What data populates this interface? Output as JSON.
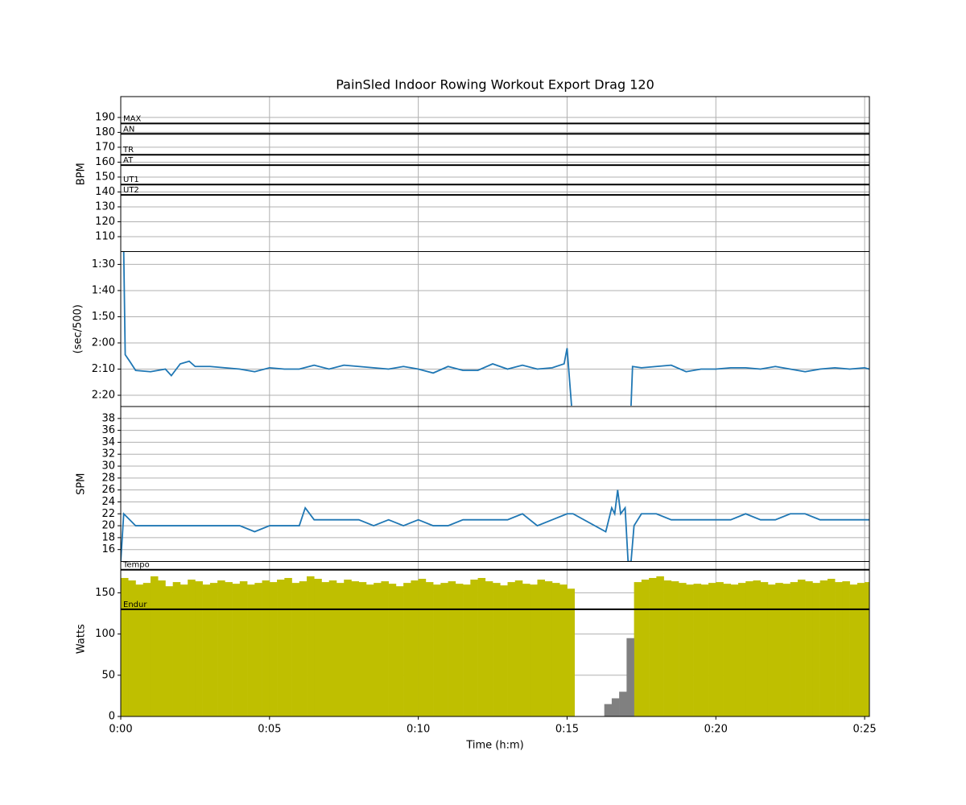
{
  "chart_data": [
    {
      "type": "line",
      "title": "PainSled Indoor Rowing Workout Export Drag 120",
      "ylabel": "BPM",
      "xlim": [
        0,
        25.16
      ],
      "xticks": [
        0,
        5,
        10,
        15,
        20,
        25
      ],
      "ylim": [
        100,
        204
      ],
      "yticks": [
        110,
        120,
        130,
        140,
        150,
        160,
        170,
        180,
        190
      ],
      "grid": true,
      "hlines": [
        {
          "value": 186,
          "label": "MAX"
        },
        {
          "value": 179,
          "label": "AN"
        },
        {
          "value": 165,
          "label": "TR"
        },
        {
          "value": 158,
          "label": "AT"
        },
        {
          "value": 145,
          "label": "UT1"
        },
        {
          "value": 138,
          "label": "UT2"
        }
      ],
      "series": []
    },
    {
      "type": "line",
      "ylabel": "(sec/500)",
      "xlim": [
        0,
        25.16
      ],
      "xticks": [
        0,
        5,
        10,
        15,
        20,
        25
      ],
      "ylim": [
        144.3,
        85.1
      ],
      "yticks": [
        {
          "value": 90,
          "label": "1:30"
        },
        {
          "value": 100,
          "label": "1:40"
        },
        {
          "value": 110,
          "label": "1:50"
        },
        {
          "value": 120,
          "label": "2:00"
        },
        {
          "value": 130,
          "label": "2:10"
        },
        {
          "value": 140,
          "label": "2:20"
        }
      ],
      "grid": true,
      "series": [
        {
          "color": "#1f77b4",
          "x": [
            0.1,
            0.15,
            0.3,
            0.5,
            1,
            1.5,
            1.7,
            2,
            2.3,
            2.5,
            3,
            3.5,
            4,
            4.5,
            5,
            5.5,
            6,
            6.5,
            7,
            7.5,
            8,
            8.5,
            9,
            9.5,
            10,
            10.5,
            11,
            11.5,
            12,
            12.5,
            13,
            13.5,
            14,
            14.5,
            14.9,
            15,
            15.15,
            16,
            17.15,
            17.2,
            17.5,
            18,
            18.5,
            19,
            19.5,
            20,
            20.5,
            21,
            21.5,
            22,
            22.5,
            23,
            23.5,
            24,
            24.5,
            25,
            25.16
          ],
          "values": [
            85,
            124.5,
            127,
            130.5,
            131,
            130,
            132.5,
            128,
            127,
            129,
            129,
            129.5,
            130,
            131,
            129.5,
            130,
            130,
            128.5,
            130,
            128.5,
            129,
            129.5,
            130,
            129,
            130,
            131.5,
            129,
            130.5,
            130.5,
            128,
            130,
            128.5,
            130,
            129.5,
            128,
            122,
            144,
            null,
            144,
            129,
            129.5,
            129,
            128.5,
            131,
            130,
            130,
            129.5,
            129.5,
            130,
            129,
            130,
            131,
            130,
            129.5,
            130,
            129.5,
            130
          ]
        }
      ]
    },
    {
      "type": "line",
      "ylabel": "SPM",
      "xlim": [
        0,
        25.16
      ],
      "xticks": [
        0,
        5,
        10,
        15,
        20,
        25
      ],
      "ylim": [
        14,
        40
      ],
      "yticks": [
        16,
        18,
        20,
        22,
        24,
        26,
        28,
        30,
        32,
        34,
        36,
        38
      ],
      "grid": true,
      "series": [
        {
          "color": "#1f77b4",
          "x": [
            0,
            0.1,
            0.3,
            0.5,
            1,
            1.5,
            2,
            2.5,
            3,
            3.5,
            4,
            4.5,
            5,
            5.5,
            6,
            6.2,
            6.5,
            7,
            7.5,
            8,
            8.5,
            9,
            9.5,
            10,
            10.5,
            11,
            11.5,
            12,
            12.5,
            13,
            13.5,
            14,
            14.5,
            15,
            15.2,
            16.3,
            16.5,
            16.6,
            16.7,
            16.8,
            16.95,
            17.05,
            17.15,
            17.25,
            17.5,
            18,
            18.5,
            19,
            19.5,
            20,
            20.5,
            21,
            21.5,
            22,
            22.5,
            23,
            23.5,
            24,
            24.5,
            25,
            25.16
          ],
          "values": [
            14,
            22,
            21,
            20,
            20,
            20,
            20,
            20,
            20,
            20,
            20,
            19,
            20,
            20,
            20,
            23,
            21,
            21,
            21,
            21,
            20,
            21,
            20,
            21,
            20,
            20,
            21,
            21,
            21,
            21,
            22,
            20,
            21,
            22,
            22,
            19,
            23,
            22,
            26,
            22,
            23,
            14,
            14,
            20,
            22,
            22,
            21,
            21,
            21,
            21,
            21,
            22,
            21,
            21,
            22,
            22,
            21,
            21,
            21,
            21,
            21
          ]
        }
      ]
    },
    {
      "type": "bar",
      "ylabel": "Watts",
      "xlabel": "Time (h:m)",
      "xlim": [
        0,
        25.16
      ],
      "xticks": [
        {
          "value": 0,
          "label": "0:00"
        },
        {
          "value": 5,
          "label": "0:05"
        },
        {
          "value": 10,
          "label": "0:10"
        },
        {
          "value": 15,
          "label": "0:15"
        },
        {
          "value": 20,
          "label": "0:20"
        },
        {
          "value": 25,
          "label": "0:25"
        }
      ],
      "ylim": [
        0,
        188
      ],
      "yticks": [
        0,
        50,
        100,
        150
      ],
      "grid": true,
      "hlines": [
        {
          "value": 178,
          "label": "Tempo"
        },
        {
          "value": 130,
          "label": "Endur"
        }
      ],
      "x": [
        0.125,
        0.375,
        0.625,
        0.875,
        1.125,
        1.375,
        1.625,
        1.875,
        2.125,
        2.375,
        2.625,
        2.875,
        3.125,
        3.375,
        3.625,
        3.875,
        4.125,
        4.375,
        4.625,
        4.875,
        5.125,
        5.375,
        5.625,
        5.875,
        6.125,
        6.375,
        6.625,
        6.875,
        7.125,
        7.375,
        7.625,
        7.875,
        8.125,
        8.375,
        8.625,
        8.875,
        9.125,
        9.375,
        9.625,
        9.875,
        10.125,
        10.375,
        10.625,
        10.875,
        11.125,
        11.375,
        11.625,
        11.875,
        12.125,
        12.375,
        12.625,
        12.875,
        13.125,
        13.375,
        13.625,
        13.875,
        14.125,
        14.375,
        14.625,
        14.875,
        15.125,
        15.375,
        15.625,
        15.875,
        16.125,
        16.375,
        16.625,
        16.875,
        17.125,
        17.375,
        17.625,
        17.875,
        18.125,
        18.375,
        18.625,
        18.875,
        19.125,
        19.375,
        19.625,
        19.875,
        20.125,
        20.375,
        20.625,
        20.875,
        21.125,
        21.375,
        21.625,
        21.875,
        22.125,
        22.375,
        22.625,
        22.875,
        23.125,
        23.375,
        23.625,
        23.875,
        24.125,
        24.375,
        24.625,
        24.875,
        25.125
      ],
      "series": [
        {
          "color": "#bfbf00",
          "values": [
            168,
            165,
            160,
            162,
            170,
            165,
            158,
            163,
            160,
            166,
            164,
            160,
            162,
            165,
            163,
            161,
            164,
            160,
            162,
            165,
            163,
            166,
            168,
            162,
            164,
            170,
            167,
            163,
            165,
            162,
            166,
            164,
            163,
            160,
            162,
            164,
            161,
            158,
            162,
            165,
            167,
            163,
            160,
            162,
            164,
            161,
            160,
            166,
            168,
            164,
            162,
            159,
            163,
            165,
            161,
            160,
            166,
            164,
            162,
            160,
            155,
            null,
            null,
            null,
            null,
            null,
            null,
            null,
            null,
            163,
            166,
            168,
            170,
            165,
            164,
            162,
            160,
            161,
            160,
            162,
            163,
            161,
            160,
            162,
            164,
            165,
            163,
            160,
            162,
            161,
            163,
            166,
            164,
            162,
            165,
            167,
            163,
            164,
            160,
            162,
            163
          ]
        },
        {
          "color": "#808080",
          "values": [
            null,
            null,
            null,
            null,
            null,
            null,
            null,
            null,
            null,
            null,
            null,
            null,
            null,
            null,
            null,
            null,
            null,
            null,
            null,
            null,
            null,
            null,
            null,
            null,
            null,
            null,
            null,
            null,
            null,
            null,
            null,
            null,
            null,
            null,
            null,
            null,
            null,
            null,
            null,
            null,
            null,
            null,
            null,
            null,
            null,
            null,
            null,
            null,
            null,
            null,
            null,
            null,
            null,
            null,
            null,
            null,
            null,
            null,
            null,
            null,
            null,
            null,
            null,
            null,
            null,
            15,
            22,
            30,
            95,
            null,
            null,
            null,
            null,
            null,
            null,
            null,
            null,
            null,
            null,
            null,
            null,
            null,
            null,
            null,
            null,
            null,
            null,
            null,
            null,
            null,
            null,
            null,
            null,
            null,
            null,
            null,
            null,
            null,
            null,
            null,
            null
          ]
        }
      ]
    }
  ]
}
